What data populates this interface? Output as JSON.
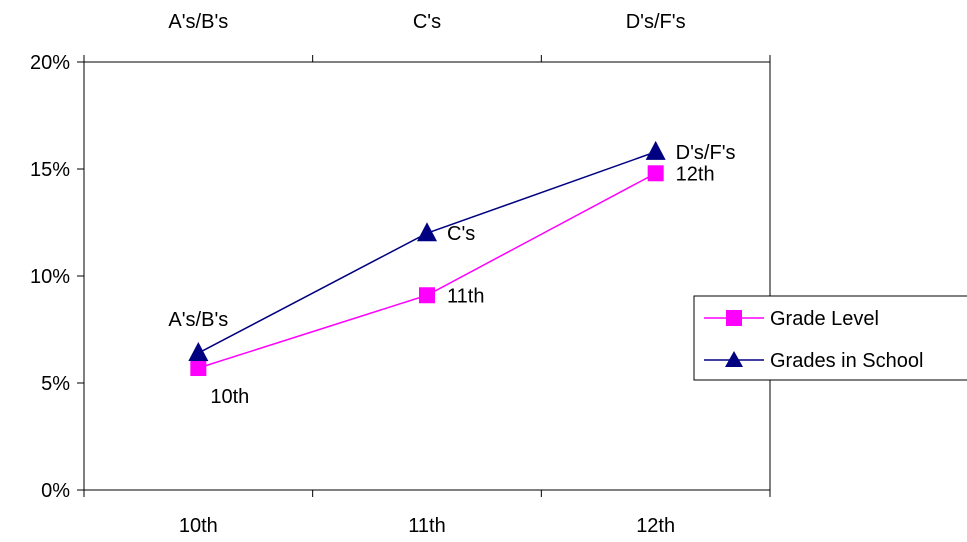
{
  "chart_data": {
    "type": "line",
    "x_bottom": [
      "10th",
      "11th",
      "12th"
    ],
    "x_top": [
      "A's/B's",
      "C's",
      "D's/F's"
    ],
    "y_ticks": [
      "0%",
      "5%",
      "10%",
      "15%",
      "20%"
    ],
    "ylim": [
      0,
      20
    ],
    "grid": false,
    "legend_position": "right",
    "series": [
      {
        "name": "Grade Level",
        "color": "#ff00ff",
        "marker": "square",
        "values": [
          5.7,
          9.1,
          14.8
        ],
        "point_labels": [
          "10th",
          "11th",
          "12th"
        ]
      },
      {
        "name": "Grades in School",
        "color": "#000080",
        "marker": "triangle",
        "values": [
          6.4,
          12.0,
          15.8
        ],
        "point_labels": [
          "A's/B's",
          "C's",
          "D's/F's"
        ]
      }
    ]
  }
}
